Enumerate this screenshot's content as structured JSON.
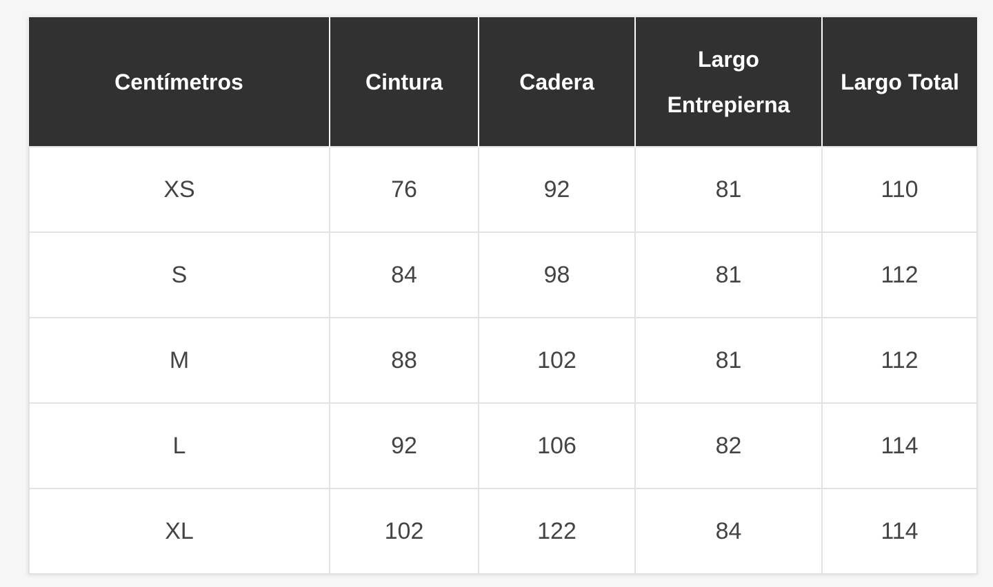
{
  "table": {
    "header": [
      "Centímetros",
      "Cintura",
      "Cadera",
      "Largo Entrepierna",
      "Largo Total"
    ],
    "rows": [
      [
        "XS",
        76,
        92,
        81,
        110
      ],
      [
        "S",
        84,
        98,
        81,
        112
      ],
      [
        "M",
        88,
        102,
        81,
        112
      ],
      [
        "L",
        92,
        106,
        82,
        114
      ],
      [
        "XL",
        102,
        122,
        84,
        114
      ]
    ]
  }
}
